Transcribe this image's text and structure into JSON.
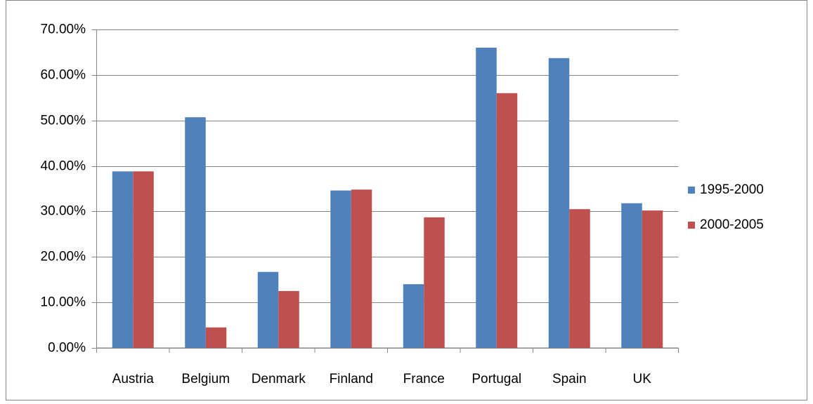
{
  "chart_data": {
    "type": "bar",
    "categories": [
      "Austria",
      "Belgium",
      "Denmark",
      "Finland",
      "France",
      "Portugal",
      "Spain",
      "UK"
    ],
    "series": [
      {
        "name": "1995-2000",
        "color": "#4f81bd",
        "values": [
          38.8,
          50.7,
          16.7,
          34.6,
          14.0,
          66.0,
          63.7,
          31.8
        ]
      },
      {
        "name": "2000-2005",
        "color": "#c0504d",
        "values": [
          38.8,
          4.5,
          12.5,
          34.8,
          28.7,
          56.0,
          30.5,
          30.2
        ]
      }
    ],
    "ylim": [
      0,
      70
    ],
    "yticks": [
      {
        "value": 0,
        "label": "0.00%"
      },
      {
        "value": 10,
        "label": "10.00%"
      },
      {
        "value": 20,
        "label": "20.00%"
      },
      {
        "value": 30,
        "label": "30.00%"
      },
      {
        "value": 40,
        "label": "40.00%"
      },
      {
        "value": 50,
        "label": "50.00%"
      },
      {
        "value": 60,
        "label": "60.00%"
      },
      {
        "value": 70,
        "label": "70.00%"
      }
    ],
    "grid": true,
    "legend": "right"
  }
}
